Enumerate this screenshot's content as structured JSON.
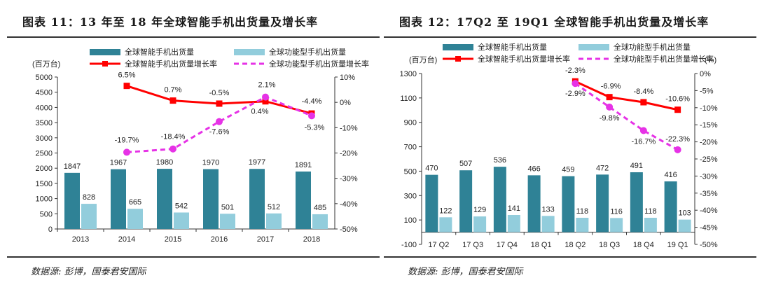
{
  "colors": {
    "domestic_bar": "#2f8296",
    "global_bar": "#92cddc",
    "domestic_line": "#ff0000",
    "global_line": "#e632e6",
    "axis": "#333333"
  },
  "chart_data": [
    {
      "type": "bar",
      "title": "图表 11：13 年至 18 年全球智能手机出货量及增长率",
      "source": "数据源:   彭博，国泰君安国际",
      "ylabel_left": "(百万台)",
      "ylabel_right": "",
      "categories": [
        "2013",
        "2014",
        "2015",
        "2016",
        "2017",
        "2018"
      ],
      "ylim_left": [
        0,
        5000
      ],
      "yticks_left": [
        "0",
        "500",
        "1000",
        "1500",
        "2000",
        "2500",
        "3000",
        "3500",
        "4000",
        "4500",
        "5000"
      ],
      "ylim_right": [
        -50,
        10
      ],
      "yticks_right": [
        "-50%",
        "-40%",
        "-30%",
        "-20%",
        "-10%",
        "0%",
        "10%"
      ],
      "legend": [
        "全球智能手机出货量",
        "全球功能型手机出货量",
        "全球智能手机出货量增长率",
        "全球功能型手机出货量增长率"
      ],
      "series": [
        {
          "name": "全球智能手机出货量",
          "kind": "bar",
          "values": [
            1847,
            1967,
            1980,
            1970,
            1977,
            1891
          ]
        },
        {
          "name": "全球功能型手机出货量",
          "kind": "bar",
          "values": [
            828,
            665,
            542,
            501,
            512,
            485
          ]
        },
        {
          "name": "全球智能手机出货量增长率",
          "kind": "line",
          "values": [
            null,
            6.5,
            0.7,
            -0.5,
            0.4,
            -4.4
          ],
          "labels": [
            null,
            "6.5%",
            "0.7%",
            "-0.5%",
            "0.4%",
            "-4.4%"
          ]
        },
        {
          "name": "全球功能型手机出货量增长率",
          "kind": "line",
          "values": [
            null,
            -19.7,
            -18.4,
            -7.6,
            2.1,
            -5.3
          ],
          "labels": [
            null,
            "-19.7%",
            "-18.4%",
            "-7.6%",
            "2.1%",
            "-5.3%"
          ]
        }
      ]
    },
    {
      "type": "bar",
      "title": "图表 12：17Q2 至 19Q1 全球智能手机出货量及增长率",
      "source": "数据源:   彭博，国泰君安国际",
      "ylabel_left": "(百万台)",
      "ylabel_right": "(%)",
      "categories": [
        "17 Q2",
        "17 Q3",
        "17 Q4",
        "18 Q1",
        "18 Q2",
        "18 Q3",
        "18 Q4",
        "19 Q1"
      ],
      "ylim_left": [
        -100,
        1300
      ],
      "yticks_left": [
        "-100",
        "100",
        "300",
        "500",
        "700",
        "900",
        "1100",
        "1300"
      ],
      "ylim_right": [
        -50,
        0
      ],
      "yticks_right": [
        "-50%",
        "-45%",
        "-40%",
        "-35%",
        "-30%",
        "-25%",
        "-20%",
        "-15%",
        "-10%",
        "-5%",
        "0%"
      ],
      "legend": [
        "全球智能手机出货量",
        "全球功能型手机出货量",
        "全球智能手机出货量增长率",
        "全球功能型手机出货量增长率"
      ],
      "series": [
        {
          "name": "全球智能手机出货量",
          "kind": "bar",
          "values": [
            470,
            507,
            536,
            466,
            459,
            472,
            491,
            416
          ]
        },
        {
          "name": "全球功能型手机出货量",
          "kind": "bar",
          "values": [
            122,
            129,
            141,
            133,
            118,
            116,
            118,
            103
          ]
        },
        {
          "name": "全球智能手机出货量增长率",
          "kind": "line",
          "values": [
            null,
            null,
            null,
            null,
            -2.3,
            -6.9,
            -8.4,
            -10.6
          ],
          "labels": [
            null,
            null,
            null,
            null,
            "-2.3%",
            "-6.9%",
            "-8.4%",
            "-10.6%"
          ]
        },
        {
          "name": "全球功能型手机出货量增长率",
          "kind": "line",
          "values": [
            null,
            null,
            null,
            null,
            -2.9,
            -9.8,
            -16.7,
            -22.3
          ],
          "labels": [
            null,
            null,
            null,
            null,
            "-2.9%",
            "-9.8%",
            "-16.7%",
            "-22.3%"
          ]
        }
      ]
    }
  ]
}
